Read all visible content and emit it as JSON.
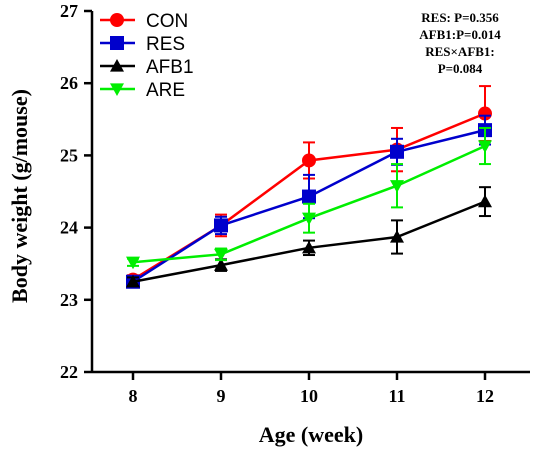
{
  "chart_data": {
    "type": "line",
    "xlabel": "Age (week)",
    "ylabel": "Body weight (g/mouse)",
    "x": [
      8,
      9,
      10,
      11,
      12
    ],
    "x_tick_labels": [
      "8",
      "9",
      "10",
      "11",
      "12"
    ],
    "ylim": [
      22,
      27
    ],
    "y_ticks": [
      22,
      23,
      24,
      25,
      26,
      27
    ],
    "y_tick_labels": [
      "22",
      "23",
      "24",
      "25",
      "26",
      "27"
    ],
    "grid": false,
    "legend_position": "top-left",
    "series": [
      {
        "name": "CON",
        "color": "#ff0000",
        "marker": "circle",
        "values": [
          23.28,
          24.03,
          24.93,
          25.08,
          25.58
        ],
        "errors": [
          0.06,
          0.15,
          0.25,
          0.3,
          0.38
        ]
      },
      {
        "name": "RES",
        "color": "#0000cc",
        "marker": "square",
        "values": [
          23.25,
          24.03,
          24.43,
          25.05,
          25.35
        ],
        "errors": [
          0.06,
          0.12,
          0.3,
          0.18,
          0.2
        ]
      },
      {
        "name": "AFB1",
        "color": "#000000",
        "marker": "triangle-up",
        "values": [
          23.25,
          23.48,
          23.72,
          23.87,
          24.36
        ],
        "errors": [
          0.06,
          0.08,
          0.1,
          0.23,
          0.2
        ]
      },
      {
        "name": "ARE",
        "color": "#00ee00",
        "marker": "triangle-down",
        "values": [
          23.52,
          23.63,
          24.13,
          24.58,
          25.13
        ],
        "errors": [
          0.05,
          0.08,
          0.2,
          0.3,
          0.25
        ]
      }
    ],
    "annotations": [
      "RES: P=0.356",
      "AFB1:P=0.014",
      "RES×AFB1:",
      "P=0.084"
    ]
  }
}
